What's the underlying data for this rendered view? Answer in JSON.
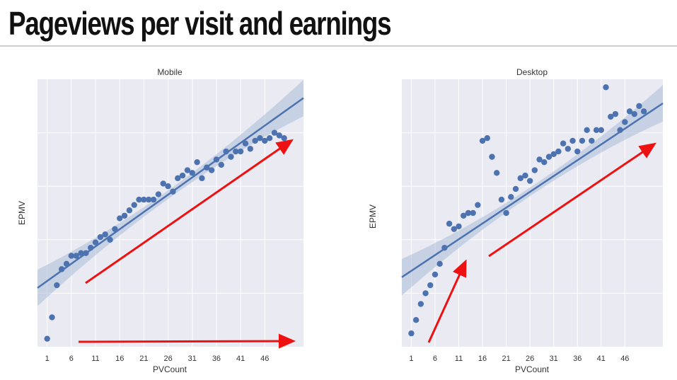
{
  "slide": {
    "title": "Pageviews per visit and earnings"
  },
  "colors": {
    "plot_bg": "#eaeaf2",
    "grid": "#ffffff",
    "point": "#4c72b0",
    "line": "#4c72b0",
    "band": "#a9bbd9",
    "arrow": "#ee1111"
  },
  "chart_data": [
    {
      "type": "scatter",
      "title": "Mobile",
      "xlabel": "PVCount",
      "ylabel": "EPMV",
      "xlim": [
        -1,
        54
      ],
      "ylim": [
        0,
        100
      ],
      "xticks": [
        1,
        6,
        11,
        16,
        21,
        26,
        31,
        36,
        41,
        46
      ],
      "ygrid": [
        20,
        40,
        60,
        80
      ],
      "x": [
        1,
        2,
        3,
        4,
        5,
        6,
        7,
        8,
        9,
        10,
        11,
        12,
        13,
        14,
        15,
        16,
        17,
        18,
        19,
        20,
        21,
        22,
        23,
        24,
        25,
        26,
        27,
        28,
        29,
        30,
        31,
        32,
        33,
        34,
        35,
        36,
        37,
        38,
        39,
        40,
        41,
        42,
        43,
        44,
        45,
        46,
        47,
        48,
        49,
        50
      ],
      "y": [
        3,
        11,
        23,
        29,
        31,
        34,
        34,
        35,
        35,
        37,
        39,
        41,
        42,
        40,
        44,
        48,
        49,
        51,
        53,
        55,
        55,
        55,
        55,
        57,
        61,
        60,
        58,
        63,
        64,
        66,
        65,
        69,
        63,
        67,
        66,
        70,
        68,
        73,
        71,
        73,
        73,
        76,
        74,
        77,
        78,
        77,
        78,
        80,
        79,
        78
      ],
      "fit": {
        "x": [
          -1,
          54
        ],
        "y": [
          22,
          93
        ]
      },
      "annotations": [
        "arrow",
        "arrow"
      ]
    },
    {
      "type": "scatter",
      "title": "Desktop",
      "xlabel": "PVCount",
      "ylabel": "EPMV",
      "xlim": [
        -1,
        54
      ],
      "ylim": [
        0,
        100
      ],
      "xticks": [
        1,
        6,
        11,
        16,
        21,
        26,
        31,
        36,
        41,
        46
      ],
      "ygrid": [
        20,
        40,
        60,
        80
      ],
      "x": [
        1,
        2,
        3,
        4,
        5,
        6,
        7,
        8,
        9,
        10,
        11,
        12,
        13,
        14,
        15,
        16,
        17,
        18,
        19,
        20,
        21,
        22,
        23,
        24,
        25,
        26,
        27,
        28,
        29,
        30,
        31,
        32,
        33,
        34,
        35,
        36,
        37,
        38,
        39,
        40,
        41,
        42,
        43,
        44,
        45,
        46,
        47,
        48,
        49,
        50
      ],
      "y": [
        5,
        10,
        16,
        20,
        23,
        27,
        31,
        37,
        46,
        44,
        45,
        49,
        50,
        50,
        53,
        77,
        78,
        71,
        65,
        55,
        50,
        56,
        59,
        63,
        64,
        62,
        66,
        70,
        69,
        71,
        72,
        73,
        76,
        74,
        77,
        73,
        77,
        81,
        77,
        81,
        81,
        97,
        86,
        87,
        81,
        84,
        88,
        87,
        90,
        88
      ],
      "fit": {
        "x": [
          -1,
          54
        ],
        "y": [
          26,
          91
        ]
      },
      "annotations": [
        "arrow",
        "arrow"
      ]
    }
  ]
}
